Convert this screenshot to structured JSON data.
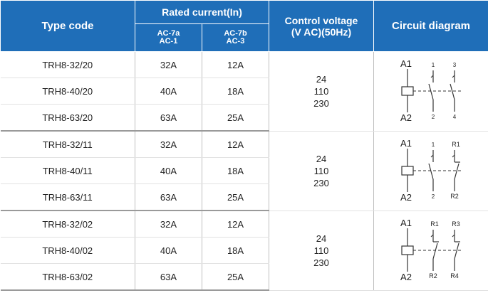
{
  "header": {
    "type_code": "Type code",
    "rated_current": "Rated current(In)",
    "ac7a_line1": "AC-7a",
    "ac7a_line2": "AC-1",
    "ac7b_line1": "AC-7b",
    "ac7b_line2": "AC-3",
    "control_voltage_line1": "Control  voltage",
    "control_voltage_line2": "(V AC)(50Hz)",
    "circuit_diagram": "Circuit diagram"
  },
  "groups": [
    {
      "rows": [
        {
          "type": "TRH8-32/20",
          "ac7a": "32A",
          "ac7b": "12A"
        },
        {
          "type": "TRH8-40/20",
          "ac7a": "40A",
          "ac7b": "18A"
        },
        {
          "type": "TRH8-63/20",
          "ac7a": "63A",
          "ac7b": "25A"
        }
      ],
      "voltage": [
        "24",
        "110",
        "230"
      ],
      "diagram": {
        "coil_top": "A1",
        "coil_bottom": "A2",
        "c1_top": "1",
        "c1_bottom": "2",
        "c2_top": "3",
        "c2_bottom": "4"
      }
    },
    {
      "rows": [
        {
          "type": "TRH8-32/11",
          "ac7a": "32A",
          "ac7b": "12A"
        },
        {
          "type": "TRH8-40/11",
          "ac7a": "40A",
          "ac7b": "18A"
        },
        {
          "type": "TRH8-63/11",
          "ac7a": "63A",
          "ac7b": "25A"
        }
      ],
      "voltage": [
        "24",
        "110",
        "230"
      ],
      "diagram": {
        "coil_top": "A1",
        "coil_bottom": "A2",
        "c1_top": "1",
        "c1_bottom": "2",
        "c2_top": "R1",
        "c2_bottom": "R2"
      }
    },
    {
      "rows": [
        {
          "type": "TRH8-32/02",
          "ac7a": "32A",
          "ac7b": "12A"
        },
        {
          "type": "TRH8-40/02",
          "ac7a": "40A",
          "ac7b": "18A"
        },
        {
          "type": "TRH8-63/02",
          "ac7a": "63A",
          "ac7b": "25A"
        }
      ],
      "voltage": [
        "24",
        "110",
        "230"
      ],
      "diagram": {
        "coil_top": "A1",
        "coil_bottom": "A2",
        "c1_top": "R1",
        "c1_bottom": "R2",
        "c2_top": "R3",
        "c2_bottom": "R4"
      }
    }
  ]
}
